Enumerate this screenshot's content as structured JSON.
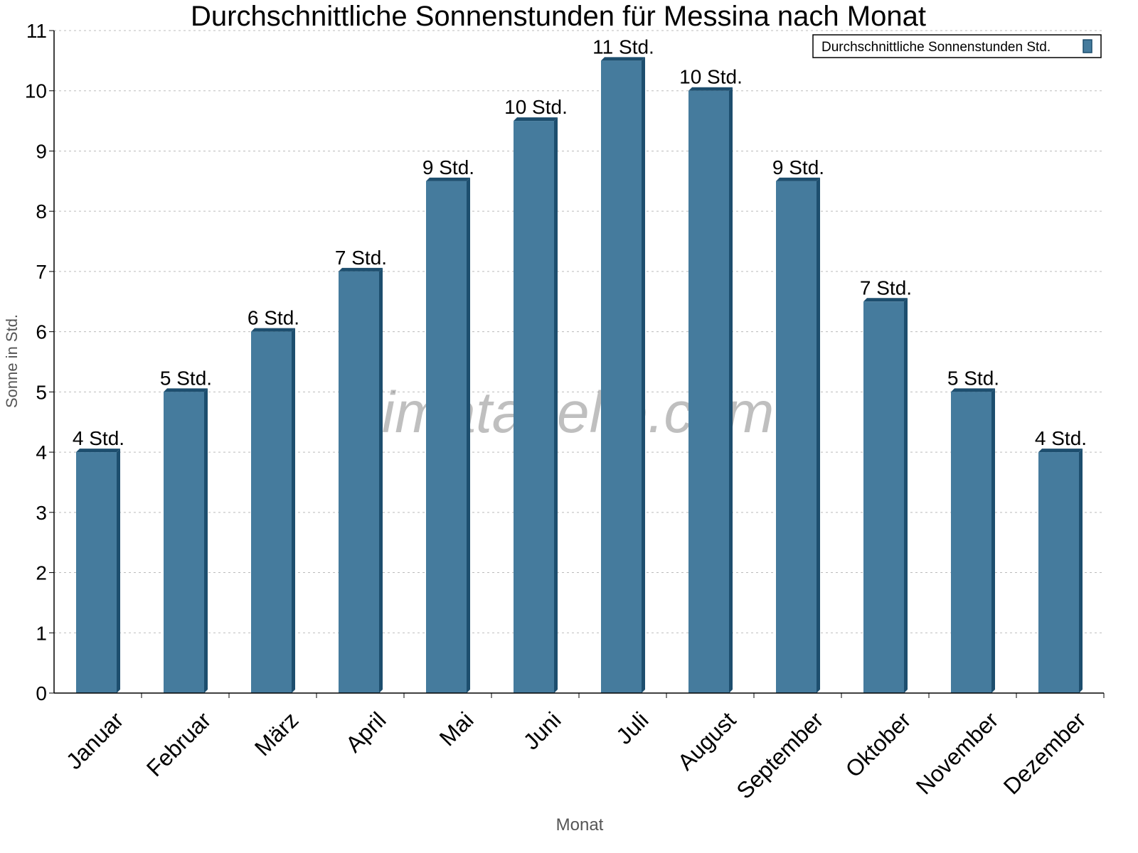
{
  "chart_data": {
    "type": "bar",
    "title": "Durchschnittliche Sonnenstunden für Messina nach Monat",
    "xlabel": "Monat",
    "ylabel": "Sonne in Std.",
    "ylim": [
      0,
      11
    ],
    "yticks": [
      "0",
      "1",
      "2",
      "3",
      "4",
      "5",
      "6",
      "7",
      "8",
      "9",
      "10",
      "11"
    ],
    "grid": true,
    "legend_position": "top-right",
    "categories": [
      "Januar",
      "Februar",
      "März",
      "April",
      "Mai",
      "Juni",
      "Juli",
      "August",
      "September",
      "Oktober",
      "November",
      "Dezember"
    ],
    "series": [
      {
        "name": "Durchschnittliche Sonnenstunden Std.",
        "values": [
          4,
          5,
          6,
          7,
          8.5,
          9.5,
          10.5,
          10,
          8.5,
          6.5,
          5,
          4
        ],
        "labels": [
          "4 Std.",
          "5 Std.",
          "6 Std.",
          "7 Std.",
          "9 Std.",
          "10 Std.",
          "11 Std.",
          "10 Std.",
          "9 Std.",
          "7 Std.",
          "5 Std.",
          "4 Std."
        ],
        "color": "#457b9d",
        "shade_color": "#1d4e6e"
      }
    ],
    "watermark": "klimatabelle.com"
  }
}
